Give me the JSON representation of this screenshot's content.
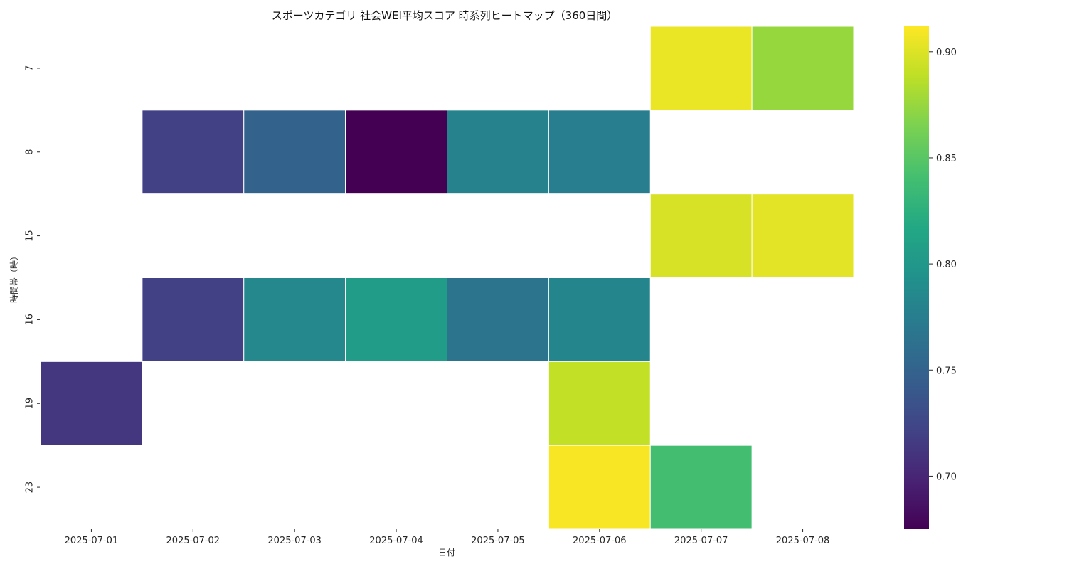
{
  "chart_data": {
    "type": "heatmap",
    "title": "スポーツカテゴリ 社会WEI平均スコア 時系列ヒートマップ（360日間）",
    "xlabel": "日付",
    "ylabel": "時間帯（時）",
    "x": [
      "2025-07-01",
      "2025-07-02",
      "2025-07-03",
      "2025-07-04",
      "2025-07-05",
      "2025-07-06",
      "2025-07-07",
      "2025-07-08"
    ],
    "y": [
      "7",
      "8",
      "15",
      "16",
      "19",
      "23"
    ],
    "values": [
      [
        null,
        null,
        null,
        null,
        null,
        null,
        0.905,
        0.875
      ],
      [
        null,
        0.72,
        0.75,
        0.675,
        0.78,
        0.775,
        null,
        null
      ],
      [
        null,
        null,
        null,
        null,
        null,
        null,
        0.898,
        0.902
      ],
      [
        null,
        0.72,
        0.785,
        0.805,
        0.765,
        0.782,
        null,
        null
      ],
      [
        0.712,
        null,
        null,
        null,
        null,
        0.89,
        null,
        null
      ],
      [
        null,
        null,
        null,
        null,
        null,
        0.91,
        0.84,
        null
      ]
    ],
    "colorbar": {
      "colormap": "viridis",
      "range": [
        0.675,
        0.912
      ],
      "ticks": [
        "0.70",
        "0.75",
        "0.80",
        "0.85",
        "0.90"
      ]
    }
  }
}
